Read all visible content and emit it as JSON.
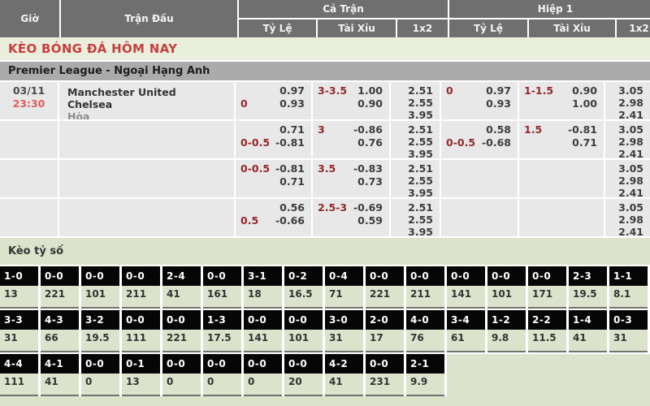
{
  "header": {
    "time": "Giờ",
    "match": "Trận Đấu",
    "full_match": "Cả Trận",
    "first_half": "Hiệp 1",
    "handicap": "Tỷ Lệ",
    "over_under": "Tài Xỉu",
    "one_x_two": "1x2"
  },
  "title": "KÈO BÓNG ĐÁ HÔM NAY",
  "league": "Premier League - Ngoại Hạng Anh",
  "match": {
    "date": "03/11",
    "kickoff": "23:30",
    "home": "Manchester United",
    "away": "Chelsea",
    "draw": "Hòa"
  },
  "odds_rows": [
    {
      "ft_hdp": [
        {
          "l": "",
          "r": "0.97"
        },
        {
          "l": "0",
          "r": "0.93"
        }
      ],
      "ft_ou": [
        {
          "l": "3-3.5",
          "r": "1.00"
        },
        {
          "l": "",
          "r": "0.90"
        }
      ],
      "ft_1x2": [
        "2.51",
        "2.55",
        "3.95"
      ],
      "h1_hdp": [
        {
          "l": "0",
          "r": "0.97"
        },
        {
          "l": "",
          "r": "0.93"
        }
      ],
      "h1_ou": [
        {
          "l": "1-1.5",
          "r": "0.90"
        },
        {
          "l": "",
          "r": "1.00"
        }
      ],
      "h1_1x2": [
        "3.05",
        "2.98",
        "2.41"
      ]
    },
    {
      "ft_hdp": [
        {
          "l": "",
          "r": "0.71"
        },
        {
          "l": "0-0.5",
          "r": "-0.81"
        }
      ],
      "ft_ou": [
        {
          "l": "3",
          "r": "-0.86"
        },
        {
          "l": "",
          "r": "0.76"
        }
      ],
      "ft_1x2": [
        "2.51",
        "2.55",
        "3.95"
      ],
      "h1_hdp": [
        {
          "l": "",
          "r": "0.58"
        },
        {
          "l": "0-0.5",
          "r": "-0.68"
        }
      ],
      "h1_ou": [
        {
          "l": "1.5",
          "r": "-0.81"
        },
        {
          "l": "",
          "r": "0.71"
        }
      ],
      "h1_1x2": [
        "3.05",
        "2.98",
        "2.41"
      ]
    },
    {
      "ft_hdp": [
        {
          "l": "0-0.5",
          "r": "-0.81"
        },
        {
          "l": "",
          "r": "0.71"
        }
      ],
      "ft_ou": [
        {
          "l": "3.5",
          "r": "-0.83"
        },
        {
          "l": "",
          "r": "0.73"
        }
      ],
      "ft_1x2": [
        "2.51",
        "2.55",
        "3.95"
      ],
      "h1_hdp": [],
      "h1_ou": [],
      "h1_1x2": [
        "3.05",
        "2.98",
        "2.41"
      ]
    },
    {
      "ft_hdp": [
        {
          "l": "",
          "r": "0.56"
        },
        {
          "l": "0.5",
          "r": "-0.66"
        }
      ],
      "ft_ou": [
        {
          "l": "2.5-3",
          "r": "-0.69"
        },
        {
          "l": "",
          "r": "0.59"
        }
      ],
      "ft_1x2": [
        "2.51",
        "2.55",
        "3.95"
      ],
      "h1_hdp": [],
      "h1_ou": [],
      "h1_1x2": [
        "3.05",
        "2.98",
        "2.41"
      ]
    }
  ],
  "score_section": {
    "title": "Kèo tỷ số",
    "rows": [
      [
        {
          "score": "1-0",
          "value": "13"
        },
        {
          "score": "0-0",
          "value": "221"
        },
        {
          "score": "0-0",
          "value": "101"
        },
        {
          "score": "0-0",
          "value": "211"
        },
        {
          "score": "2-4",
          "value": "41"
        },
        {
          "score": "0-0",
          "value": "161"
        },
        {
          "score": "3-1",
          "value": "18"
        },
        {
          "score": "0-2",
          "value": "16.5"
        },
        {
          "score": "0-4",
          "value": "71"
        },
        {
          "score": "0-0",
          "value": "221"
        },
        {
          "score": "0-0",
          "value": "211"
        },
        {
          "score": "0-0",
          "value": "141"
        },
        {
          "score": "0-0",
          "value": "101"
        },
        {
          "score": "0-0",
          "value": "171"
        },
        {
          "score": "2-3",
          "value": "19.5"
        },
        {
          "score": "1-1",
          "value": "8.1"
        }
      ],
      [
        {
          "score": "3-3",
          "value": "31"
        },
        {
          "score": "4-3",
          "value": "66"
        },
        {
          "score": "3-2",
          "value": "19.5"
        },
        {
          "score": "0-0",
          "value": "111"
        },
        {
          "score": "0-0",
          "value": "221"
        },
        {
          "score": "1-3",
          "value": "17.5"
        },
        {
          "score": "0-0",
          "value": "141"
        },
        {
          "score": "0-0",
          "value": "101"
        },
        {
          "score": "3-0",
          "value": "31"
        },
        {
          "score": "2-0",
          "value": "17"
        },
        {
          "score": "4-0",
          "value": "76"
        },
        {
          "score": "3-4",
          "value": "61"
        },
        {
          "score": "1-2",
          "value": "9.8"
        },
        {
          "score": "2-2",
          "value": "11.5"
        },
        {
          "score": "1-4",
          "value": "41"
        },
        {
          "score": "0-3",
          "value": "31"
        }
      ],
      [
        {
          "score": "4-4",
          "value": "111"
        },
        {
          "score": "4-1",
          "value": "41"
        },
        {
          "score": "0-0",
          "value": "0"
        },
        {
          "score": "0-1",
          "value": "13"
        },
        {
          "score": "0-0",
          "value": "0"
        },
        {
          "score": "0-0",
          "value": "0"
        },
        {
          "score": "0-0",
          "value": "0"
        },
        {
          "score": "0-0",
          "value": "20"
        },
        {
          "score": "4-2",
          "value": "41"
        },
        {
          "score": "0-0",
          "value": "231"
        },
        {
          "score": "2-1",
          "value": "9.9"
        }
      ]
    ]
  },
  "colors": {
    "header_bg": "#6f6f6f",
    "title_red": "#c73f3f",
    "time_red": "#e05c5c",
    "handicap_red": "#93282a",
    "value_dark": "#3d3d3d",
    "league_bar_bg": "#ababab",
    "odds_cell_bg": "#e8e8e8",
    "section_green": "#dce3cd",
    "score_head_bg": "#060606"
  }
}
